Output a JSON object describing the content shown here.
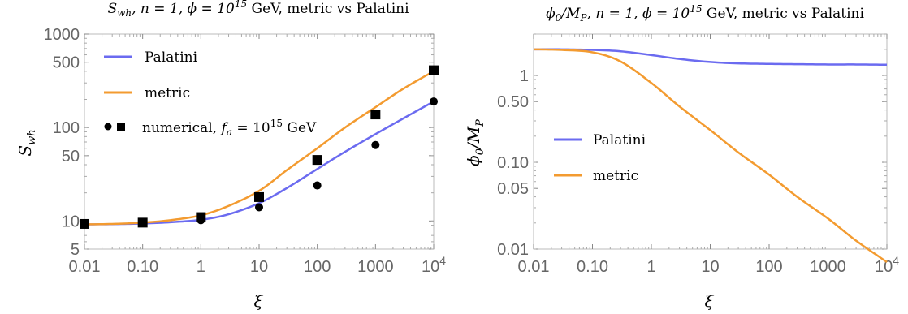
{
  "colors": {
    "palatini": "#6b6bf0",
    "metric": "#f39b30",
    "points": "#000000"
  },
  "chart_data": [
    {
      "type": "line",
      "title": "S_wh,  n = 1,  φ = 10^15 GeV, metric vs Palatini",
      "xlabel": "ξ",
      "ylabel": "S_wh",
      "x_scale": "log",
      "y_scale": "log",
      "xlim": [
        0.01,
        10000
      ],
      "ylim": [
        5,
        1000
      ],
      "x_ticks": [
        0.01,
        0.1,
        1,
        10,
        100,
        1000,
        10000
      ],
      "x_tick_labels": [
        "0.01",
        "0.10",
        "1",
        "10",
        "100",
        "1000",
        "10^4"
      ],
      "y_ticks": [
        5,
        10,
        50,
        100,
        500,
        1000
      ],
      "y_tick_labels": [
        "5",
        "10",
        "50",
        "100",
        "500",
        "1000"
      ],
      "legend_position": "top-left",
      "series": [
        {
          "name": "Palatini",
          "style": "line",
          "color_key": "palatini",
          "x": [
            0.01,
            0.03,
            0.1,
            0.3,
            1,
            3,
            10,
            30,
            100,
            300,
            1000,
            3000,
            10000
          ],
          "y": [
            9.2,
            9.25,
            9.4,
            9.7,
            10.3,
            11.8,
            15.5,
            22.5,
            36,
            55,
            85,
            125,
            190
          ]
        },
        {
          "name": "metric",
          "style": "line",
          "color_key": "metric",
          "x": [
            0.01,
            0.03,
            0.1,
            0.3,
            1,
            3,
            10,
            30,
            100,
            300,
            1000,
            3000,
            10000
          ],
          "y": [
            9.2,
            9.3,
            9.6,
            10.2,
            11.5,
            14.5,
            21,
            35,
            60,
            100,
            165,
            260,
            400
          ]
        },
        {
          "name": "numerical, f_a = 10^15 GeV",
          "style": "points",
          "marker": "circle",
          "color_key": "points",
          "x": [
            0.01,
            0.1,
            1,
            10,
            100,
            1000,
            10000
          ],
          "y": [
            9.3,
            9.5,
            10.2,
            14,
            24,
            65,
            190
          ]
        },
        {
          "name": "",
          "style": "points",
          "marker": "square",
          "color_key": "points",
          "x": [
            0.01,
            0.1,
            1,
            10,
            100,
            1000,
            10000
          ],
          "y": [
            9.3,
            9.6,
            11,
            18,
            45,
            138,
            410
          ]
        }
      ]
    },
    {
      "type": "line",
      "title": "φ0/M_P, n = 1, φ = 10^15 GeV, metric vs Palatini",
      "xlabel": "ξ",
      "ylabel": "φ0/M_P",
      "x_scale": "log",
      "y_scale": "log",
      "xlim": [
        0.01,
        10000
      ],
      "ylim": [
        0.01,
        3
      ],
      "x_ticks": [
        0.01,
        0.1,
        1,
        10,
        100,
        1000,
        10000
      ],
      "x_tick_labels": [
        "0.01",
        "0.10",
        "1",
        "10",
        "100",
        "1000",
        "10^4"
      ],
      "y_ticks": [
        0.01,
        0.05,
        0.1,
        0.5,
        1
      ],
      "y_tick_labels": [
        "0.01",
        "0.05",
        "0.10",
        "0.50",
        "1"
      ],
      "legend_position": "middle-left",
      "series": [
        {
          "name": "Palatini",
          "style": "line",
          "color_key": "palatini",
          "x": [
            0.01,
            0.03,
            0.1,
            0.3,
            1,
            3,
            10,
            30,
            100,
            300,
            1000,
            3000,
            10000
          ],
          "y": [
            2.0,
            2.0,
            1.97,
            1.9,
            1.72,
            1.55,
            1.43,
            1.38,
            1.36,
            1.35,
            1.34,
            1.34,
            1.33
          ]
        },
        {
          "name": "metric",
          "style": "line",
          "color_key": "metric",
          "x": [
            0.01,
            0.03,
            0.1,
            0.3,
            1,
            3,
            10,
            30,
            100,
            300,
            1000,
            3000,
            10000
          ],
          "y": [
            2.0,
            1.97,
            1.85,
            1.45,
            0.82,
            0.44,
            0.235,
            0.13,
            0.072,
            0.04,
            0.0225,
            0.0125,
            0.0071
          ]
        }
      ]
    }
  ],
  "legend": {
    "left": {
      "palatini": "Palatini",
      "metric": "metric",
      "numerical": "numerical, f_a = 10^15 GeV"
    },
    "right": {
      "palatini": "Palatini",
      "metric": "metric"
    }
  }
}
